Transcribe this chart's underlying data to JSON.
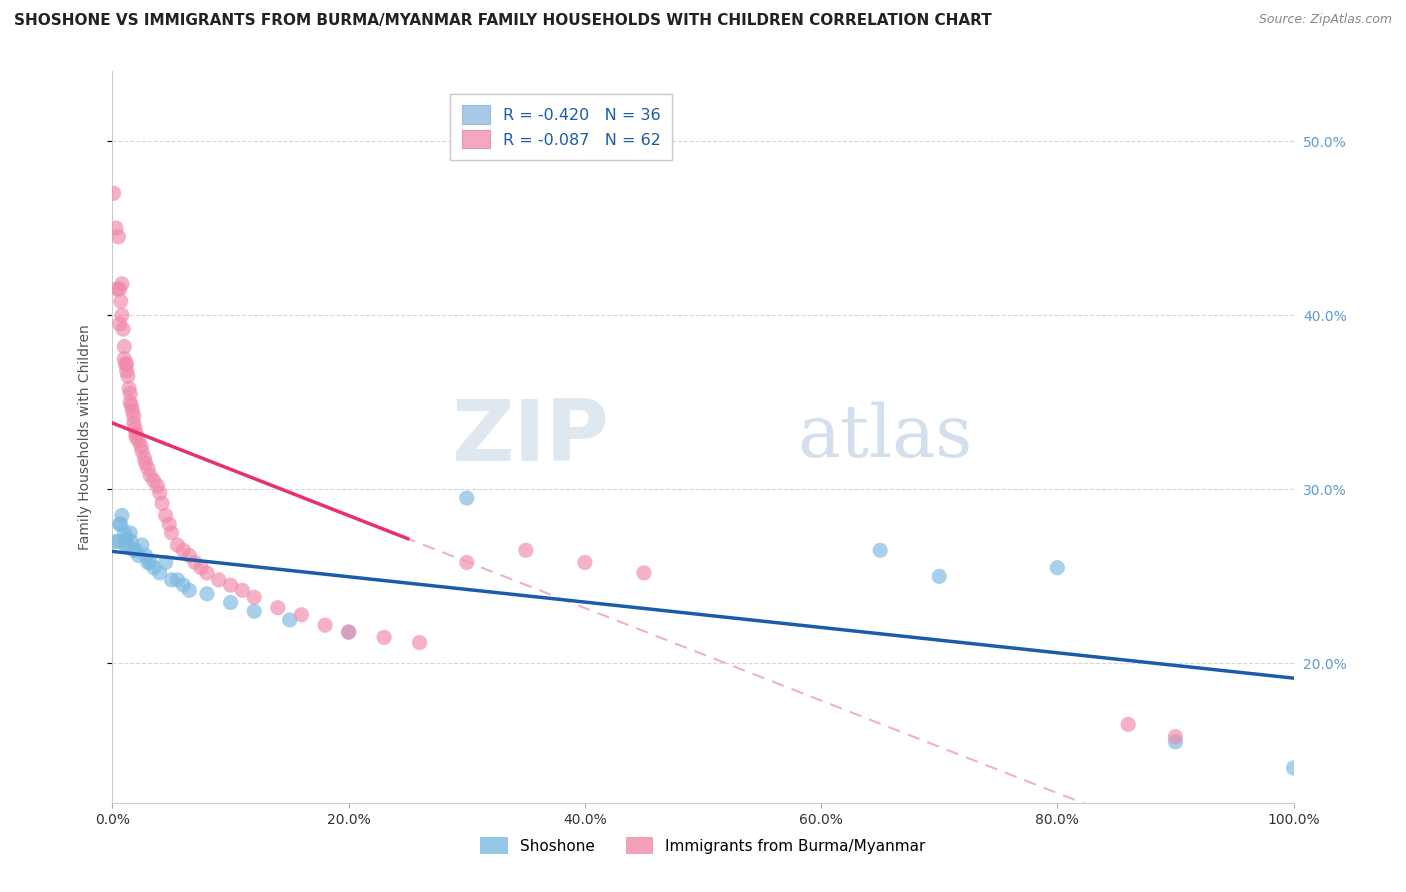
{
  "title": "SHOSHONE VS IMMIGRANTS FROM BURMA/MYANMAR FAMILY HOUSEHOLDS WITH CHILDREN CORRELATION CHART",
  "source": "Source: ZipAtlas.com",
  "ylabel": "Family Households with Children",
  "xlim": [
    0.0,
    1.0
  ],
  "ylim": [
    0.12,
    0.54
  ],
  "yticks": [
    0.2,
    0.3,
    0.4,
    0.5
  ],
  "ytick_labels": [
    "20.0%",
    "30.0%",
    "40.0%",
    "50.0%"
  ],
  "xticks": [
    0.0,
    0.2,
    0.4,
    0.6,
    0.8,
    1.0
  ],
  "xtick_labels": [
    "0.0%",
    "20.0%",
    "40.0%",
    "60.0%",
    "80.0%",
    "100.0%"
  ],
  "watermark_zip": "ZIP",
  "watermark_atlas": "atlas",
  "legend_label1": "R = -0.420   N = 36",
  "legend_label2": "R = -0.087   N = 62",
  "legend_color1": "#a8c8e8",
  "legend_color2": "#f4a8c0",
  "series1_name": "Shoshone",
  "series2_name": "Immigrants from Burma/Myanmar",
  "series1_color": "#7ab8e0",
  "series2_color": "#f088a8",
  "series1_line_color": "#1a5ca8",
  "series2_line_color": "#e8306a",
  "series2_dash_color": "#e8a0b8",
  "grid_color": "#cccccc",
  "bg_color": "#ffffff",
  "title_fontsize": 11,
  "axis_label_fontsize": 10,
  "tick_fontsize": 10,
  "right_tick_color": "#5b9bd5",
  "series1_x": [
    0.002,
    0.005,
    0.006,
    0.007,
    0.008,
    0.01,
    0.011,
    0.012,
    0.013,
    0.015,
    0.016,
    0.018,
    0.02,
    0.022,
    0.025,
    0.028,
    0.03,
    0.032,
    0.035,
    0.04,
    0.045,
    0.05,
    0.055,
    0.06,
    0.065,
    0.08,
    0.1,
    0.12,
    0.15,
    0.2,
    0.3,
    0.65,
    0.7,
    0.8,
    0.9,
    1.0
  ],
  "series1_y": [
    0.27,
    0.27,
    0.28,
    0.28,
    0.285,
    0.275,
    0.268,
    0.272,
    0.268,
    0.275,
    0.27,
    0.265,
    0.265,
    0.262,
    0.268,
    0.262,
    0.258,
    0.258,
    0.255,
    0.252,
    0.258,
    0.248,
    0.248,
    0.245,
    0.242,
    0.24,
    0.235,
    0.23,
    0.225,
    0.218,
    0.295,
    0.265,
    0.25,
    0.255,
    0.155,
    0.14
  ],
  "series2_x": [
    0.001,
    0.003,
    0.004,
    0.005,
    0.006,
    0.006,
    0.007,
    0.008,
    0.008,
    0.009,
    0.01,
    0.01,
    0.011,
    0.012,
    0.012,
    0.013,
    0.014,
    0.015,
    0.015,
    0.016,
    0.017,
    0.018,
    0.018,
    0.019,
    0.02,
    0.02,
    0.022,
    0.024,
    0.025,
    0.027,
    0.028,
    0.03,
    0.032,
    0.035,
    0.038,
    0.04,
    0.042,
    0.045,
    0.048,
    0.05,
    0.055,
    0.06,
    0.065,
    0.07,
    0.075,
    0.08,
    0.09,
    0.1,
    0.11,
    0.12,
    0.14,
    0.16,
    0.18,
    0.2,
    0.23,
    0.26,
    0.3,
    0.35,
    0.4,
    0.45,
    0.86,
    0.9
  ],
  "series2_y": [
    0.47,
    0.45,
    0.415,
    0.445,
    0.415,
    0.395,
    0.408,
    0.418,
    0.4,
    0.392,
    0.375,
    0.382,
    0.372,
    0.372,
    0.368,
    0.365,
    0.358,
    0.355,
    0.35,
    0.348,
    0.345,
    0.342,
    0.338,
    0.335,
    0.33,
    0.332,
    0.328,
    0.325,
    0.322,
    0.318,
    0.315,
    0.312,
    0.308,
    0.305,
    0.302,
    0.298,
    0.292,
    0.285,
    0.28,
    0.275,
    0.268,
    0.265,
    0.262,
    0.258,
    0.255,
    0.252,
    0.248,
    0.245,
    0.242,
    0.238,
    0.232,
    0.228,
    0.222,
    0.218,
    0.215,
    0.212,
    0.258,
    0.265,
    0.258,
    0.252,
    0.165,
    0.158
  ]
}
